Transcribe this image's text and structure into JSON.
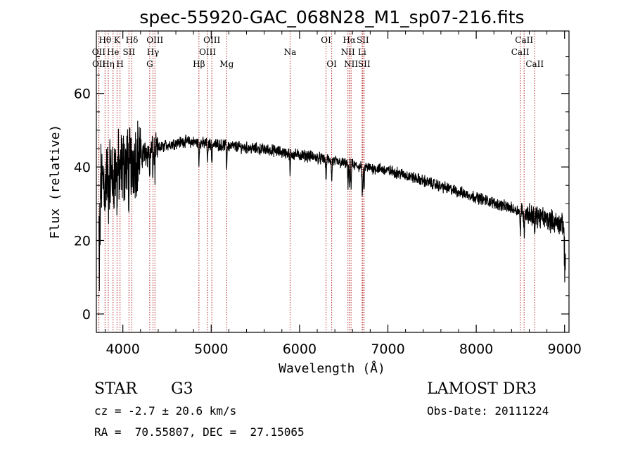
{
  "chart_data": {
    "type": "line",
    "title": "spec-55920-GAC_068N28_M1_sp07-216.fits",
    "xlabel": "Wavelength (Å)",
    "ylabel": "Flux (relative)",
    "xlim": [
      3700,
      9050
    ],
    "ylim": [
      -5,
      77
    ],
    "xticks": [
      4000,
      5000,
      6000,
      7000,
      8000,
      9000
    ],
    "yticks": [
      0,
      20,
      40,
      60
    ],
    "continuum_anchors": {
      "x": [
        3700,
        3850,
        4000,
        4150,
        4300,
        4500,
        4700,
        4900,
        5100,
        5300,
        5500,
        5700,
        5900,
        6100,
        6300,
        6500,
        6700,
        6900,
        7100,
        7300,
        7500,
        7700,
        7900,
        8100,
        8300,
        8500,
        8700,
        8900,
        9000
      ],
      "y": [
        35,
        38,
        40,
        43,
        44,
        46,
        47,
        46.5,
        46,
        45.5,
        45,
        44.5,
        43.5,
        43,
        42,
        41,
        40,
        39.5,
        38.5,
        37,
        35.5,
        34,
        32.5,
        31,
        29.5,
        28,
        26.5,
        25,
        24
      ]
    },
    "spectral_lines": [
      {
        "label": "Hθ",
        "wavelength": 3798,
        "row": 1
      },
      {
        "label": "OII",
        "wavelength": 3727,
        "row": 2
      },
      {
        "label": "OII",
        "wavelength": 3729,
        "row": 3
      },
      {
        "label": "K",
        "wavelength": 3934,
        "row": 1
      },
      {
        "label": "He",
        "wavelength": 3889,
        "row": 2
      },
      {
        "label": "Hη",
        "wavelength": 3835,
        "row": 3
      },
      {
        "label": "H",
        "wavelength": 3968,
        "row": 3
      },
      {
        "label": "SII",
        "wavelength": 4069,
        "row": 2
      },
      {
        "label": "Hδ",
        "wavelength": 4102,
        "row": 1
      },
      {
        "label": "OIII",
        "wavelength": 4363,
        "row": 1
      },
      {
        "label": "Hγ",
        "wavelength": 4341,
        "row": 2
      },
      {
        "label": "G",
        "wavelength": 4304,
        "row": 3
      },
      {
        "label": "Hβ",
        "wavelength": 4861,
        "row": 3
      },
      {
        "label": "OIII",
        "wavelength": 4959,
        "row": 2
      },
      {
        "label": "OIII",
        "wavelength": 5007,
        "row": 1
      },
      {
        "label": "Mg",
        "wavelength": 5175,
        "row": 3
      },
      {
        "label": "Na",
        "wavelength": 5893,
        "row": 2
      },
      {
        "label": "OI",
        "wavelength": 6300,
        "row": 1
      },
      {
        "label": "OI",
        "wavelength": 6364,
        "row": 3
      },
      {
        "label": "Hα",
        "wavelength": 6563,
        "row": 1
      },
      {
        "label": "NII",
        "wavelength": 6548,
        "row": 2
      },
      {
        "label": "NII",
        "wavelength": 6583,
        "row": 3
      },
      {
        "label": "SII",
        "wavelength": 6716,
        "row": 1
      },
      {
        "label": "Li",
        "wavelength": 6708,
        "row": 2
      },
      {
        "label": "SII",
        "wavelength": 6731,
        "row": 3
      },
      {
        "label": "CaII",
        "wavelength": 8542,
        "row": 1
      },
      {
        "label": "CaII",
        "wavelength": 8498,
        "row": 2
      },
      {
        "label": "CaII",
        "wavelength": 8662,
        "row": 3
      }
    ],
    "line_color": "#b22222"
  },
  "info": {
    "object_class": "STAR",
    "subclass": "G3",
    "survey": "LAMOST DR3",
    "cz": "cz = -2.7 ± 20.6 km/s",
    "obs_date": "Obs-Date: 20111224",
    "coords": "RA =  70.55807, DEC =  27.15065"
  }
}
